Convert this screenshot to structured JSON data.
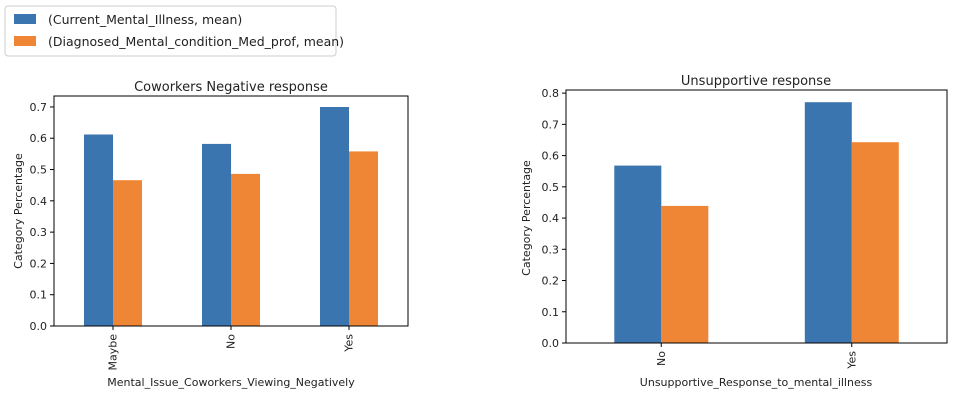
{
  "legend": {
    "entries": [
      {
        "label": "(Current_Mental_Illness, mean)",
        "color": "#3b75af"
      },
      {
        "label": "(Diagnosed_Mental_condition_Med_prof, mean)",
        "color": "#ef8636"
      }
    ]
  },
  "chart_data": [
    {
      "type": "bar",
      "title": "Coworkers Negative response",
      "xlabel": "Mental_Issue_Coworkers_Viewing_Negatively",
      "ylabel": "Category Percentage",
      "categories": [
        "Maybe",
        "No",
        "Yes"
      ],
      "series": [
        {
          "name": "(Current_Mental_Illness, mean)",
          "color": "#3b75af",
          "values": [
            0.612,
            0.582,
            0.7
          ]
        },
        {
          "name": "(Diagnosed_Mental_condition_Med_prof, mean)",
          "color": "#ef8636",
          "values": [
            0.466,
            0.486,
            0.558
          ]
        }
      ],
      "ylim": [
        0,
        0.735
      ],
      "yticks": [
        0.0,
        0.1,
        0.2,
        0.3,
        0.4,
        0.5,
        0.6,
        0.7
      ],
      "ytick_labels": [
        "0.0",
        "0.1",
        "0.2",
        "0.3",
        "0.4",
        "0.5",
        "0.6",
        "0.7"
      ],
      "grid": false,
      "legend": "shared, top-left of figure"
    },
    {
      "type": "bar",
      "title": "Unsupportive response",
      "xlabel": "Unsupportive_Response_to_mental_illness",
      "ylabel": "Category Percentage",
      "categories": [
        "No",
        "Yes"
      ],
      "series": [
        {
          "name": "(Current_Mental_Illness, mean)",
          "color": "#3b75af",
          "values": [
            0.568,
            0.771
          ]
        },
        {
          "name": "(Diagnosed_Mental_condition_Med_prof, mean)",
          "color": "#ef8636",
          "values": [
            0.439,
            0.643
          ]
        }
      ],
      "ylim": [
        0,
        0.81
      ],
      "yticks": [
        0.0,
        0.1,
        0.2,
        0.3,
        0.4,
        0.5,
        0.6,
        0.7,
        0.8
      ],
      "ytick_labels": [
        "0.0",
        "0.1",
        "0.2",
        "0.3",
        "0.4",
        "0.5",
        "0.6",
        "0.7",
        "0.8"
      ],
      "grid": false,
      "legend": "shared, top-left of figure"
    }
  ]
}
